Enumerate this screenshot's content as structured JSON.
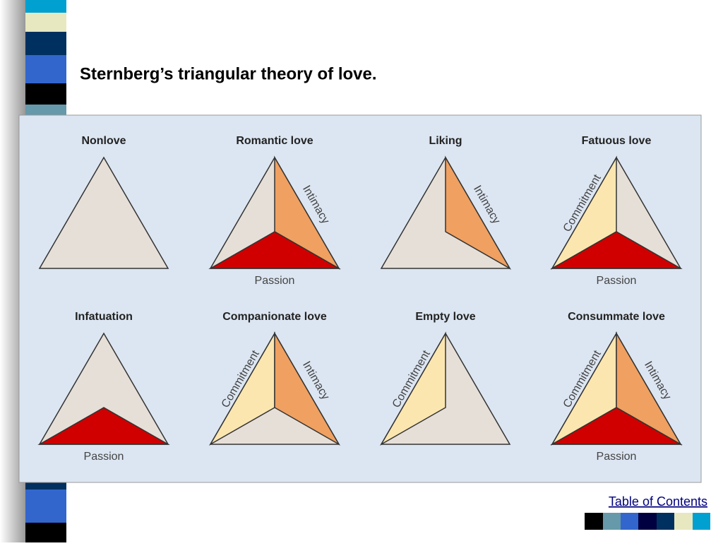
{
  "title": "Sternberg’s triangular theory of love.",
  "panels": [
    {
      "title": "Nonlove"
    },
    {
      "title": "Romantic love",
      "intimacy": "Intimacy",
      "passion": "Passion"
    },
    {
      "title": "Liking",
      "intimacy": "Intimacy"
    },
    {
      "title": "Fatuous love",
      "commitment": "Commitment",
      "passion": "Passion"
    },
    {
      "title": "Infatuation",
      "passion": "Passion"
    },
    {
      "title": "Companionate love",
      "commitment": "Commitment",
      "intimacy": "Intimacy"
    },
    {
      "title": "Empty love",
      "commitment": "Commitment"
    },
    {
      "title": "Consummate love",
      "commitment": "Commitment",
      "intimacy": "Intimacy",
      "passion": "Passion"
    }
  ],
  "link": "Table of Contents"
}
